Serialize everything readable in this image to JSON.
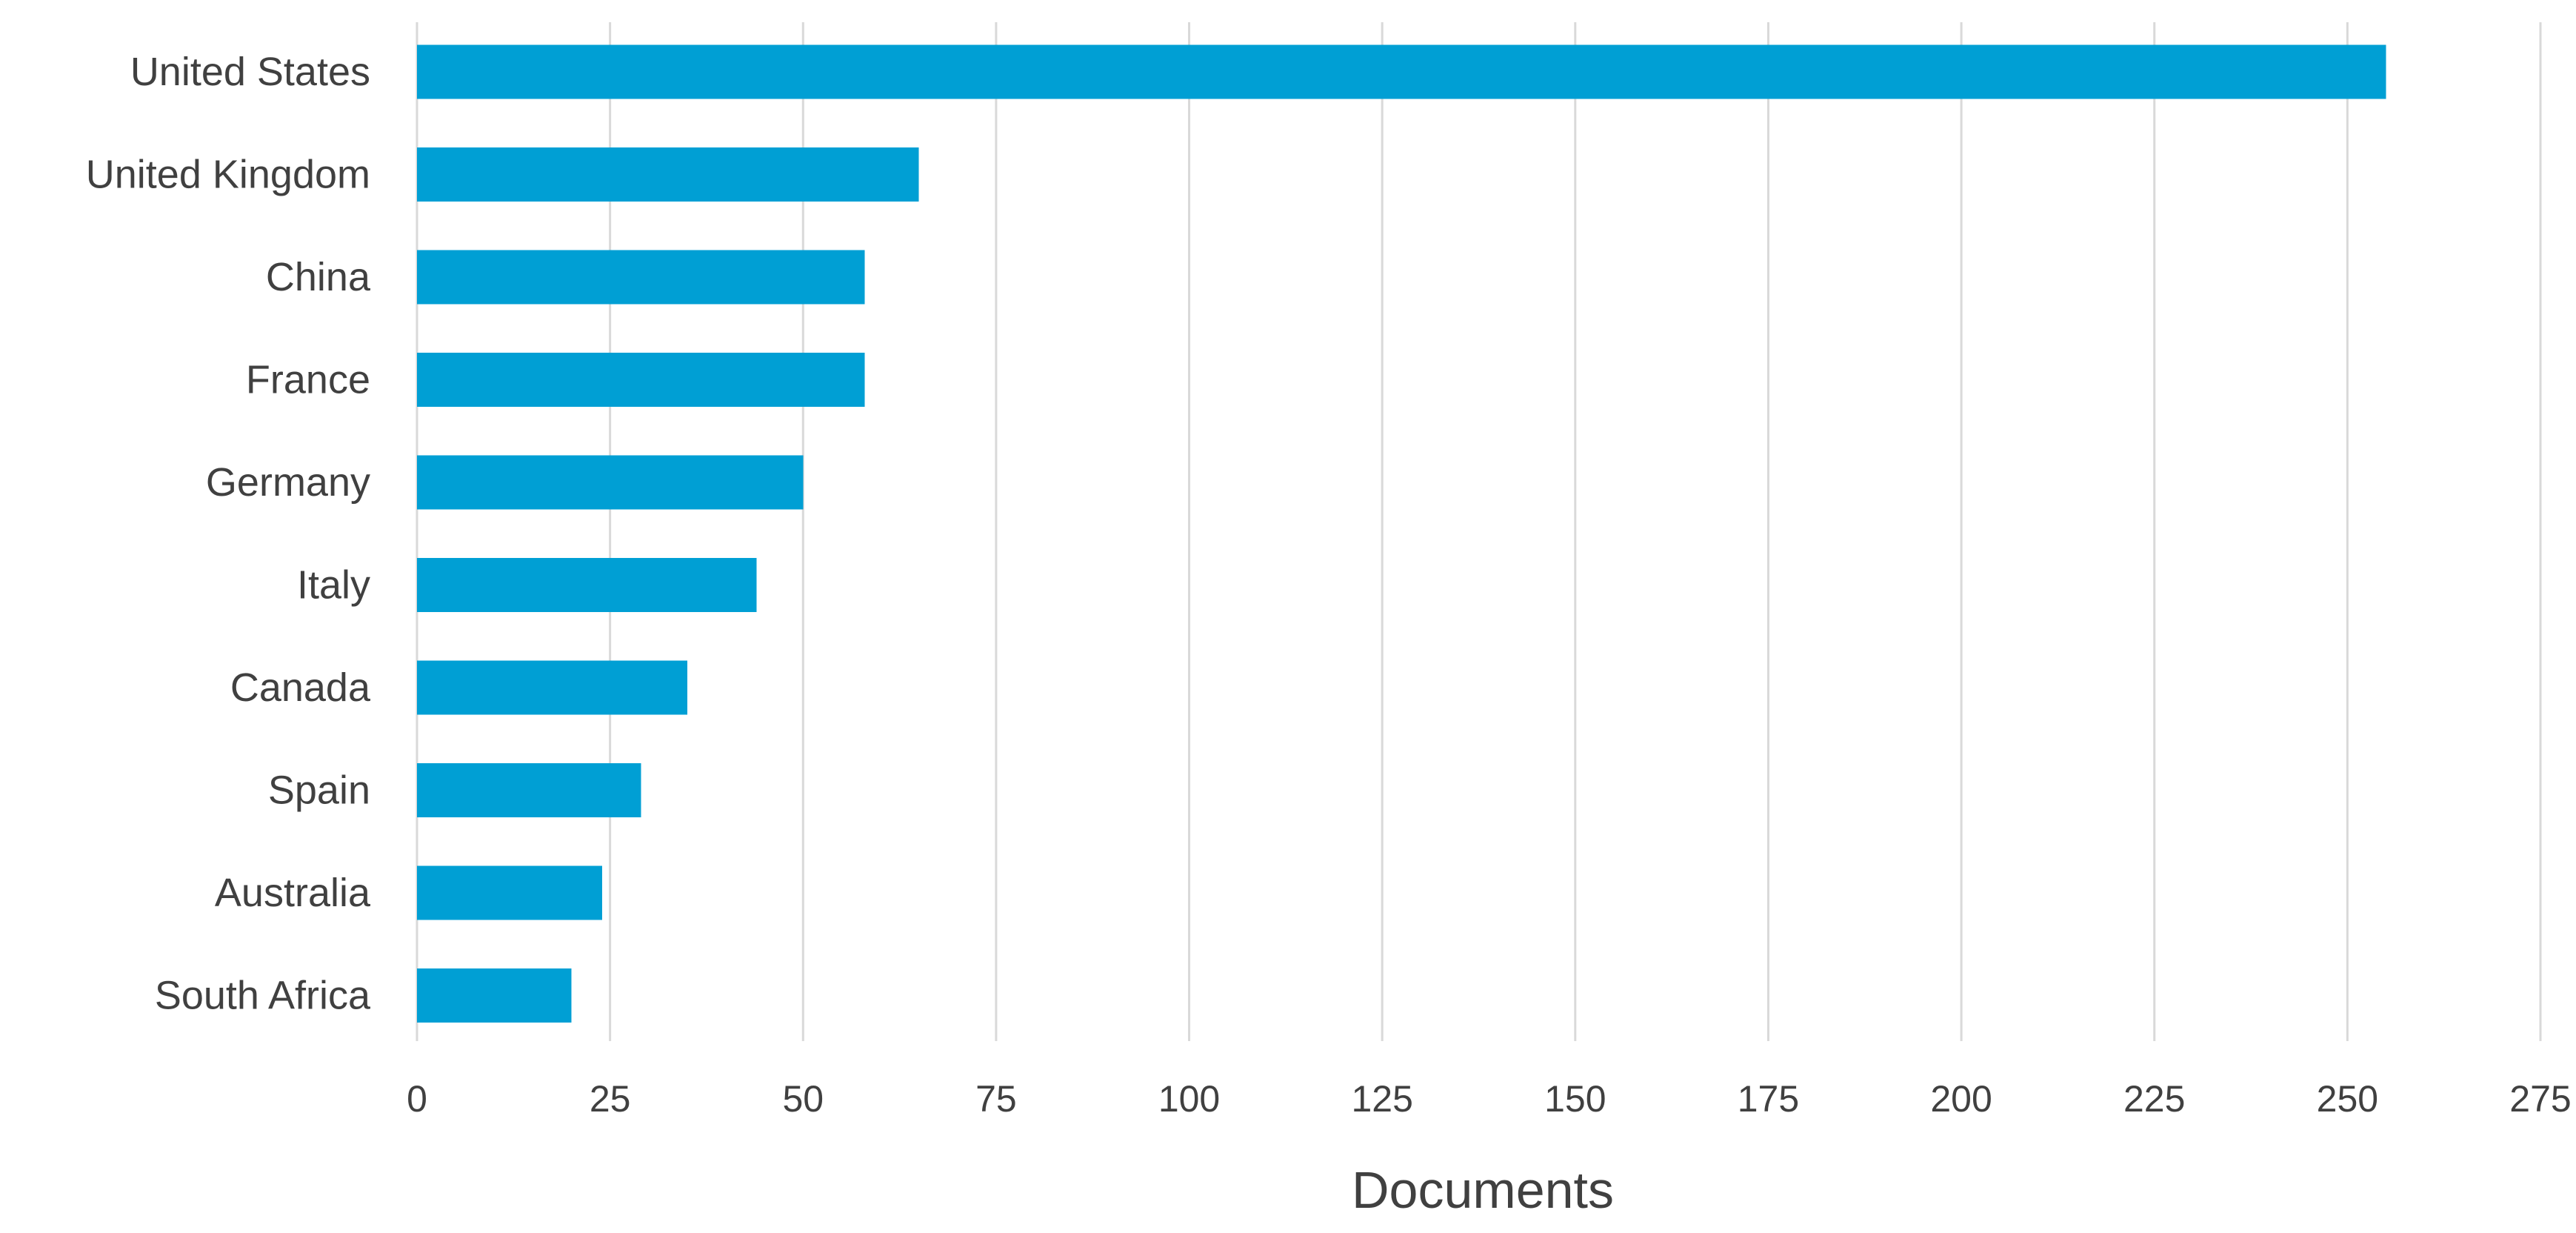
{
  "chart_data": {
    "type": "bar",
    "orientation": "horizontal",
    "categories": [
      "United States",
      "United Kingdom",
      "China",
      "France",
      "Germany",
      "Italy",
      "Canada",
      "Spain",
      "Australia",
      "South Africa"
    ],
    "values": [
      255,
      65,
      58,
      58,
      50,
      44,
      35,
      29,
      24,
      20
    ],
    "xlabel": "Documents",
    "ylabel": "",
    "xlim": [
      0,
      275
    ],
    "xticks": [
      0,
      25,
      50,
      75,
      100,
      125,
      150,
      175,
      200,
      225,
      250,
      275
    ],
    "xtick_labels": [
      "0",
      "25",
      "50",
      "75",
      "100",
      "125",
      "150",
      "175",
      "200",
      "225",
      "250",
      "275"
    ],
    "grid": "vertical",
    "bar_color": "#009FD4",
    "grid_color": "#D9D9D9",
    "text_color": "#404040"
  }
}
